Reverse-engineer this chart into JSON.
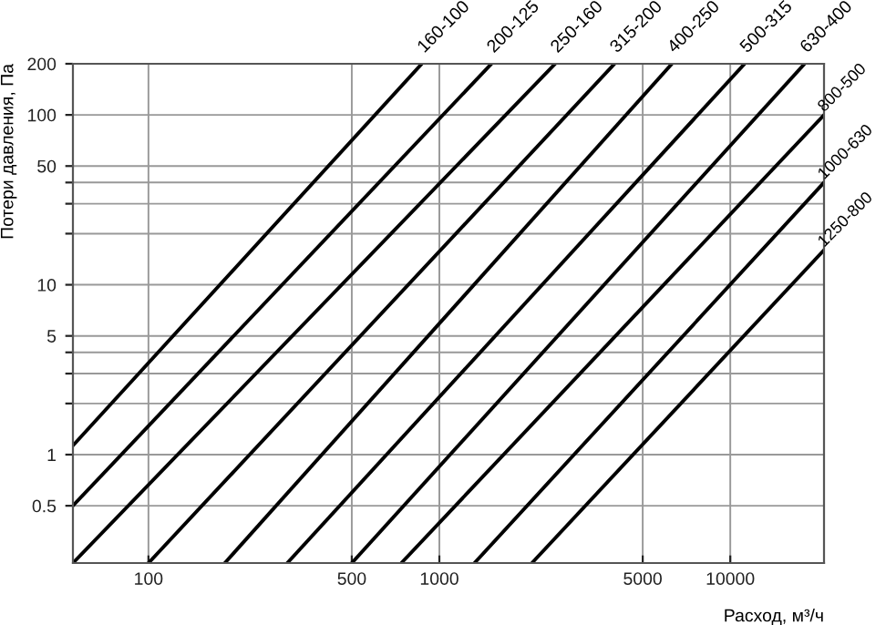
{
  "chart_data": {
    "type": "line",
    "xlabel": "Расход, м³/ч",
    "ylabel": "Потери давления, Па",
    "log": "xy",
    "grid": true,
    "legend": false,
    "marker": "none",
    "line_style": "solid",
    "xlim": [
      55,
      21000
    ],
    "ylim": [
      0.23,
      200
    ],
    "xticks": [
      100,
      500,
      1000,
      5000,
      10000
    ],
    "yticks": [
      0.5,
      1,
      {
        "value": 2,
        "label": null
      },
      {
        "value": 3,
        "label": null
      },
      {
        "value": 4,
        "label": null
      },
      5,
      10,
      {
        "value": 20,
        "label": null
      },
      {
        "value": 30,
        "label": null
      },
      {
        "value": 40,
        "label": null
      },
      50,
      100,
      200
    ],
    "series": [
      {
        "name": "160-100",
        "color": "#000000",
        "x": [
          55,
          870
        ],
        "values": [
          1.13,
          200
        ]
      },
      {
        "name": "200-125",
        "color": "#000000",
        "x": [
          55,
          1510
        ],
        "values": [
          0.5,
          200
        ]
      },
      {
        "name": "250-160",
        "color": "#000000",
        "x": [
          55,
          2500
        ],
        "values": [
          0.23,
          200
        ]
      },
      {
        "name": "315-200",
        "color": "#000000",
        "x": [
          100,
          4000
        ],
        "values": [
          0.23,
          200
        ]
      },
      {
        "name": "400-250",
        "color": "#000000",
        "x": [
          183,
          6300
        ],
        "values": [
          0.23,
          200
        ]
      },
      {
        "name": "500-315",
        "color": "#000000",
        "x": [
          300,
          11200
        ],
        "values": [
          0.23,
          200
        ]
      },
      {
        "name": "630-400",
        "color": "#000000",
        "x": [
          500,
          18000
        ],
        "values": [
          0.23,
          200
        ]
      },
      {
        "name": "800-500",
        "color": "#000000",
        "x": [
          740,
          21000
        ],
        "values": [
          0.23,
          100
        ]
      },
      {
        "name": "1000-630",
        "color": "#000000",
        "x": [
          1320,
          21000
        ],
        "values": [
          0.23,
          40
        ]
      },
      {
        "name": "1250-800",
        "color": "#000000",
        "x": [
          2080,
          21000
        ],
        "values": [
          0.23,
          16
        ]
      }
    ]
  }
}
